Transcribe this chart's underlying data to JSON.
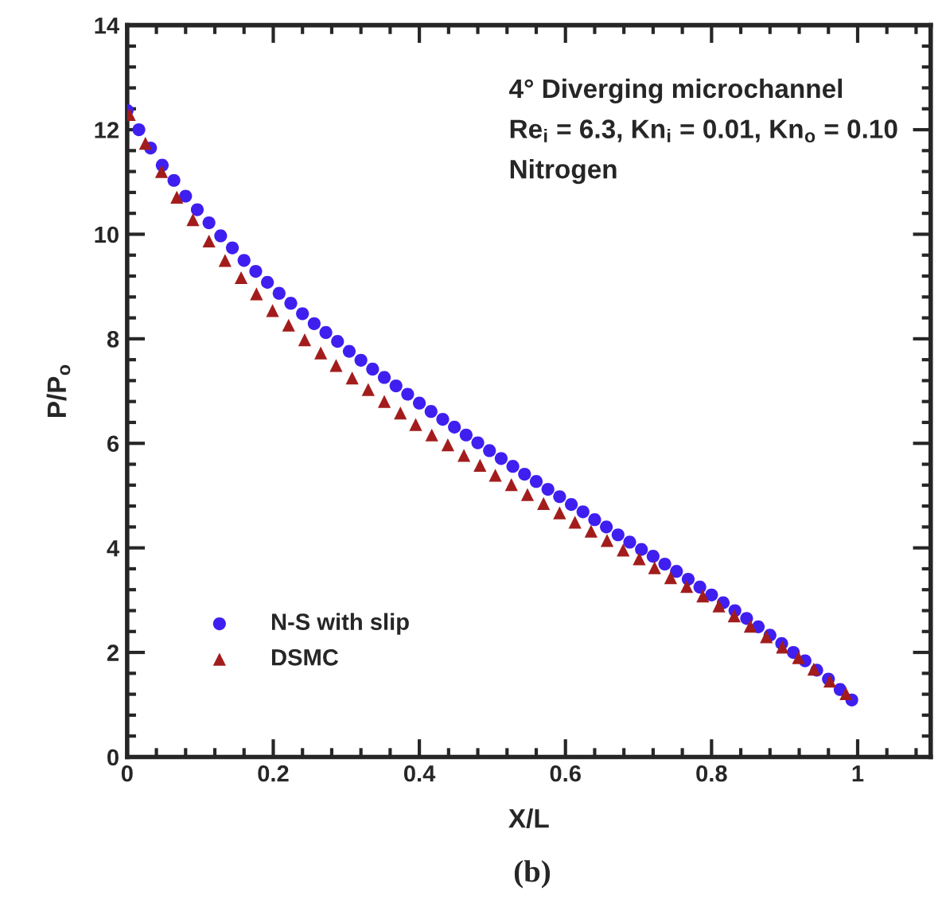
{
  "chart_data": {
    "type": "scatter",
    "xlabel": "X/L",
    "ylabel": "P/P$_{o}$",
    "annotations": [
      "4° Diverging microchannel",
      "Re$_{i}$ = 6.3, Kn$_{i}$ = 0.01, Kn$_{o}$ = 0.10",
      "Nitrogen",
      "(b)"
    ],
    "xlim": [
      0,
      1.1
    ],
    "xticks": [
      0,
      0.2,
      0.4,
      0.6,
      0.8,
      1
    ],
    "ylim": [
      0,
      14
    ],
    "yticks": [
      0,
      2,
      4,
      6,
      8,
      10,
      12,
      14
    ],
    "grid": false,
    "legend": "bottom left",
    "series": [
      {
        "name": "N-S with slip",
        "color": "#3f1ff0",
        "marker": "circle",
        "x": [
          0,
          0.016,
          0.032,
          0.048,
          0.064,
          0.08,
          0.096,
          0.112,
          0.128,
          0.144,
          0.16,
          0.176,
          0.192,
          0.208,
          0.224,
          0.24,
          0.256,
          0.272,
          0.288,
          0.304,
          0.32,
          0.336,
          0.352,
          0.368,
          0.384,
          0.4,
          0.416,
          0.432,
          0.448,
          0.464,
          0.48,
          0.496,
          0.512,
          0.528,
          0.544,
          0.56,
          0.576,
          0.592,
          0.608,
          0.624,
          0.64,
          0.656,
          0.672,
          0.688,
          0.704,
          0.72,
          0.736,
          0.752,
          0.768,
          0.784,
          0.8,
          0.816,
          0.832,
          0.848,
          0.864,
          0.88,
          0.896,
          0.912,
          0.928,
          0.944,
          0.96,
          0.976,
          0.992
        ],
        "values": [
          12.37,
          12.0,
          11.65,
          11.32,
          11.03,
          10.73,
          10.47,
          10.22,
          9.97,
          9.74,
          9.5,
          9.29,
          9.08,
          8.87,
          8.68,
          8.48,
          8.29,
          8.12,
          7.95,
          7.76,
          7.59,
          7.42,
          7.26,
          7.1,
          6.94,
          6.77,
          6.61,
          6.46,
          6.31,
          6.16,
          6.01,
          5.86,
          5.71,
          5.56,
          5.41,
          5.27,
          5.12,
          4.98,
          4.83,
          4.69,
          4.54,
          4.4,
          4.25,
          4.11,
          3.97,
          3.84,
          3.69,
          3.55,
          3.4,
          3.25,
          3.1,
          2.95,
          2.8,
          2.65,
          2.49,
          2.33,
          2.17,
          2.0,
          1.84,
          1.66,
          1.49,
          1.29,
          1.09
        ]
      },
      {
        "name": "DSMC",
        "color": "#a31c1c",
        "marker": "triangle",
        "x": [
          0.003,
          0.025,
          0.047,
          0.068,
          0.09,
          0.112,
          0.134,
          0.156,
          0.177,
          0.199,
          0.221,
          0.243,
          0.265,
          0.286,
          0.308,
          0.33,
          0.352,
          0.374,
          0.395,
          0.417,
          0.439,
          0.461,
          0.483,
          0.504,
          0.526,
          0.548,
          0.57,
          0.592,
          0.613,
          0.635,
          0.657,
          0.679,
          0.701,
          0.722,
          0.744,
          0.766,
          0.788,
          0.81,
          0.831,
          0.853,
          0.875,
          0.897,
          0.919,
          0.94,
          0.962,
          0.984
        ],
        "values": [
          12.29,
          11.74,
          11.2,
          10.71,
          10.28,
          9.87,
          9.5,
          9.17,
          8.86,
          8.54,
          8.26,
          7.98,
          7.73,
          7.49,
          7.25,
          7.03,
          6.8,
          6.58,
          6.36,
          6.16,
          5.97,
          5.77,
          5.58,
          5.39,
          5.21,
          5.02,
          4.85,
          4.67,
          4.49,
          4.32,
          4.14,
          3.96,
          3.79,
          3.62,
          3.43,
          3.26,
          3.08,
          2.89,
          2.7,
          2.5,
          2.3,
          2.1,
          1.9,
          1.68,
          1.45,
          1.21
        ]
      }
    ]
  }
}
